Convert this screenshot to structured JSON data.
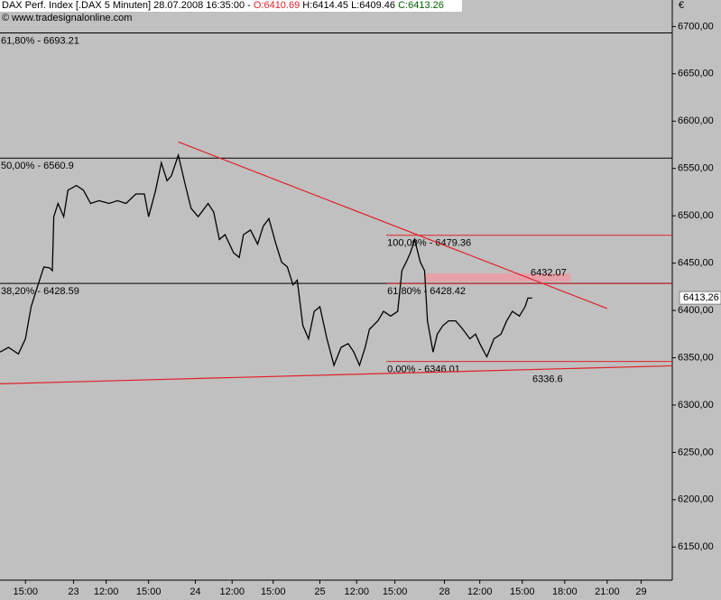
{
  "chart_data": {
    "type": "line",
    "header": {
      "title": "DAX Perf. Index [.DAX  5 Minuten] 28.07.2008 16:35:00 -",
      "open": "O:6410.69",
      "high": "H:6414.45",
      "low": "L:6409.46",
      "close": "C:6413.26"
    },
    "copyright": "© www.tradesignalonline.com",
    "currency": "€",
    "xlim": [
      0,
      47.5
    ],
    "ylim": [
      6115,
      6728
    ],
    "xticks": [
      {
        "value": 1.8,
        "label": "15:00"
      },
      {
        "value": 5.2,
        "label": "23"
      },
      {
        "value": 7.5,
        "label": "12:00"
      },
      {
        "value": 10.5,
        "label": "15:00"
      },
      {
        "value": 13.8,
        "label": "24"
      },
      {
        "value": 16.4,
        "label": "12:00"
      },
      {
        "value": 19.3,
        "label": "15:00"
      },
      {
        "value": 22.6,
        "label": "25"
      },
      {
        "value": 25.2,
        "label": "12:00"
      },
      {
        "value": 27.9,
        "label": "15:00"
      },
      {
        "value": 31.4,
        "label": "28"
      },
      {
        "value": 33.9,
        "label": "12:00"
      },
      {
        "value": 36.9,
        "label": "15:00"
      },
      {
        "value": 39.9,
        "label": "18:00"
      },
      {
        "value": 42.9,
        "label": "21:00"
      },
      {
        "value": 45.3,
        "label": "29"
      }
    ],
    "yticks": [
      {
        "value": 6150,
        "label": "6150,00"
      },
      {
        "value": 6200,
        "label": "6200,00"
      },
      {
        "value": 6250,
        "label": "6250,00"
      },
      {
        "value": 6300,
        "label": "6300,00"
      },
      {
        "value": 6350,
        "label": "6350,00"
      },
      {
        "value": 6400,
        "label": "6400,00"
      },
      {
        "value": 6450,
        "label": "6450,00"
      },
      {
        "value": 6500,
        "label": "6500,00"
      },
      {
        "value": 6550,
        "label": "6550,00"
      },
      {
        "value": 6600,
        "label": "6600,00"
      },
      {
        "value": 6650,
        "label": "6650,00"
      },
      {
        "value": 6700,
        "label": "6700,00"
      }
    ],
    "series": [
      {
        "name": "DAX",
        "color": "#000000",
        "x": [
          0,
          0.6,
          1.3,
          1.8,
          2.2,
          2.6,
          3.1,
          3.5,
          3.7,
          3.8,
          4.1,
          4.5,
          4.8,
          5.4,
          5.9,
          6.4,
          7.0,
          7.7,
          8.3,
          8.9,
          9.6,
          10.2,
          10.5,
          11.0,
          11.4,
          11.8,
          12.1,
          12.6,
          13.1,
          13.5,
          14.0,
          14.7,
          15.1,
          15.5,
          15.9,
          16.5,
          16.9,
          17.2,
          17.7,
          18.2,
          18.6,
          19.0,
          19.5,
          19.9,
          20.3,
          20.7,
          21.0,
          21.4,
          21.8,
          22.2,
          22.6,
          23.1,
          23.6,
          24.1,
          24.6,
          25.0,
          25.4,
          25.8,
          26.1,
          26.7,
          27.1,
          27.6,
          28.1,
          28.4,
          28.7,
          29.0,
          29.3,
          29.7,
          30.0,
          30.2,
          30.6,
          30.9,
          31.3,
          31.7,
          32.2,
          32.7,
          33.2,
          33.6,
          33.9,
          34.4,
          34.9,
          35.4,
          35.8,
          36.2,
          36.7,
          37.1,
          37.3,
          37.6
        ],
        "values": [
          6356,
          6361,
          6354,
          6370,
          6404,
          6423,
          6446,
          6445,
          6442,
          6499,
          6513,
          6499,
          6527,
          6532,
          6527,
          6513,
          6516,
          6513,
          6516,
          6513,
          6523,
          6523,
          6499,
          6527,
          6556,
          6537,
          6542,
          6564,
          6532,
          6508,
          6499,
          6513,
          6504,
          6475,
          6480,
          6461,
          6456,
          6480,
          6485,
          6470,
          6489,
          6497,
          6470,
          6451,
          6446,
          6427,
          6432,
          6384,
          6370,
          6399,
          6404,
          6370,
          6342,
          6361,
          6365,
          6356,
          6342,
          6361,
          6380,
          6389,
          6399,
          6394,
          6399,
          6442,
          6451,
          6461,
          6475,
          6451,
          6442,
          6389,
          6356,
          6375,
          6384,
          6389,
          6389,
          6380,
          6370,
          6375,
          6365,
          6351,
          6370,
          6375,
          6389,
          6399,
          6394,
          6404,
          6413,
          6413
        ]
      }
    ],
    "fib_levels": [
      {
        "label": "61,80% - 6693.21",
        "value": 6693.21,
        "color": "#000000",
        "from": 0
      },
      {
        "label": "50,00% - 6560.9",
        "value": 6560.9,
        "color": "#000000",
        "from": 0
      },
      {
        "label": "38,20% - 6428.59",
        "value": 6428.59,
        "color": "#000000",
        "from": 0
      },
      {
        "label": "100,00% - 6479.36",
        "value": 6479.36,
        "color": "#e0202a",
        "from": 27.3
      },
      {
        "label": "61,80% - 6428.42",
        "value": 6428.42,
        "color": "#e0202a",
        "from": 27.3
      },
      {
        "label": "0,00% - 6346.01",
        "value": 6346.01,
        "color": "#e0202a",
        "from": 27.3
      }
    ],
    "trendlines": [
      {
        "x": [
          12.6,
          42.9
        ],
        "values": [
          6578,
          6402
        ],
        "color": "#e0202a"
      },
      {
        "x": [
          0,
          47.5
        ],
        "values": [
          6322.5,
          6341.5
        ],
        "color": "#e0202a"
      }
    ],
    "zone": {
      "x": [
        30.0,
        40.3
      ],
      "values": [
        6430.5,
        6439
      ],
      "color": "#e8a0a8"
    },
    "annotations": [
      6432.07,
      6336.6
    ],
    "last_price": {
      "value": 6413.26,
      "label": "6413,26"
    }
  }
}
